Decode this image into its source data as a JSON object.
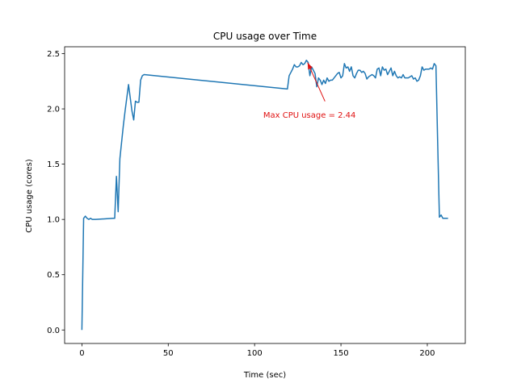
{
  "chart_data": {
    "type": "line",
    "title": "CPU usage over Time",
    "xlabel": "Time (sec)",
    "ylabel": "CPU usage (cores)",
    "xlim": [
      -10,
      222
    ],
    "ylim": [
      -0.122,
      2.562
    ],
    "xticks": [
      0,
      50,
      100,
      150,
      200
    ],
    "yticks": [
      0.0,
      0.5,
      1.0,
      1.5,
      2.0,
      2.5
    ],
    "xtick_labels": [
      "0",
      "50",
      "100",
      "150",
      "200"
    ],
    "ytick_labels": [
      "0.0",
      "0.5",
      "1.0",
      "1.5",
      "2.0",
      "2.5"
    ],
    "grid": false,
    "line_color": "#1f77b4",
    "series": [
      {
        "color": "#1f77b4",
        "x": [
          0,
          1,
          2,
          3,
          4,
          5,
          6,
          7,
          8,
          18,
          19,
          20,
          21,
          22,
          23,
          24,
          25,
          26,
          27,
          28,
          29,
          30,
          31,
          32,
          33,
          34,
          35,
          36,
          119,
          120,
          121,
          122,
          123,
          124,
          125,
          126,
          127,
          128,
          129,
          130,
          131,
          132,
          133,
          134,
          135,
          136,
          137,
          138,
          139,
          140,
          141,
          142,
          143,
          144,
          145,
          146,
          147,
          148,
          149,
          150,
          151,
          152,
          153,
          154,
          155,
          156,
          157,
          158,
          159,
          160,
          161,
          162,
          163,
          164,
          165,
          166,
          167,
          168,
          169,
          170,
          171,
          172,
          173,
          174,
          175,
          176,
          177,
          178,
          179,
          180,
          181,
          182,
          183,
          184,
          185,
          186,
          187,
          188,
          189,
          190,
          191,
          192,
          193,
          194,
          195,
          196,
          197,
          198,
          199,
          200,
          201,
          202,
          203,
          204,
          205,
          206,
          207,
          208,
          209,
          210,
          211,
          212
        ],
        "y": [
          0.0,
          1.01,
          1.03,
          1.01,
          1.0,
          1.01,
          1.0,
          1.0,
          1.0,
          1.01,
          1.01,
          1.39,
          1.07,
          1.55,
          1.7,
          1.85,
          1.98,
          2.1,
          2.22,
          2.1,
          1.98,
          1.9,
          2.07,
          2.06,
          2.06,
          2.26,
          2.3,
          2.31,
          2.18,
          2.3,
          2.33,
          2.36,
          2.4,
          2.38,
          2.38,
          2.39,
          2.42,
          2.4,
          2.41,
          2.44,
          2.42,
          2.3,
          2.38,
          2.35,
          2.32,
          2.2,
          2.28,
          2.26,
          2.22,
          2.26,
          2.23,
          2.28,
          2.25,
          2.26,
          2.26,
          2.28,
          2.3,
          2.32,
          2.33,
          2.28,
          2.3,
          2.41,
          2.37,
          2.38,
          2.34,
          2.38,
          2.3,
          2.28,
          2.32,
          2.35,
          2.35,
          2.33,
          2.34,
          2.32,
          2.27,
          2.29,
          2.3,
          2.31,
          2.3,
          2.28,
          2.36,
          2.37,
          2.3,
          2.38,
          2.35,
          2.36,
          2.31,
          2.34,
          2.37,
          2.3,
          2.34,
          2.3,
          2.28,
          2.29,
          2.28,
          2.31,
          2.28,
          2.28,
          2.28,
          2.29,
          2.3,
          2.27,
          2.28,
          2.25,
          2.26,
          2.3,
          2.38,
          2.35,
          2.36,
          2.36,
          2.36,
          2.37,
          2.36,
          2.41,
          2.39,
          1.7,
          1.02,
          1.04,
          1.01,
          1.01,
          1.01,
          1.01
        ]
      }
    ],
    "annotations": [
      {
        "text": "Max CPU usage = 2.44",
        "point": [
          130,
          2.44
        ],
        "text_pos": [
          105,
          1.95
        ],
        "color": "#e01010"
      }
    ]
  }
}
